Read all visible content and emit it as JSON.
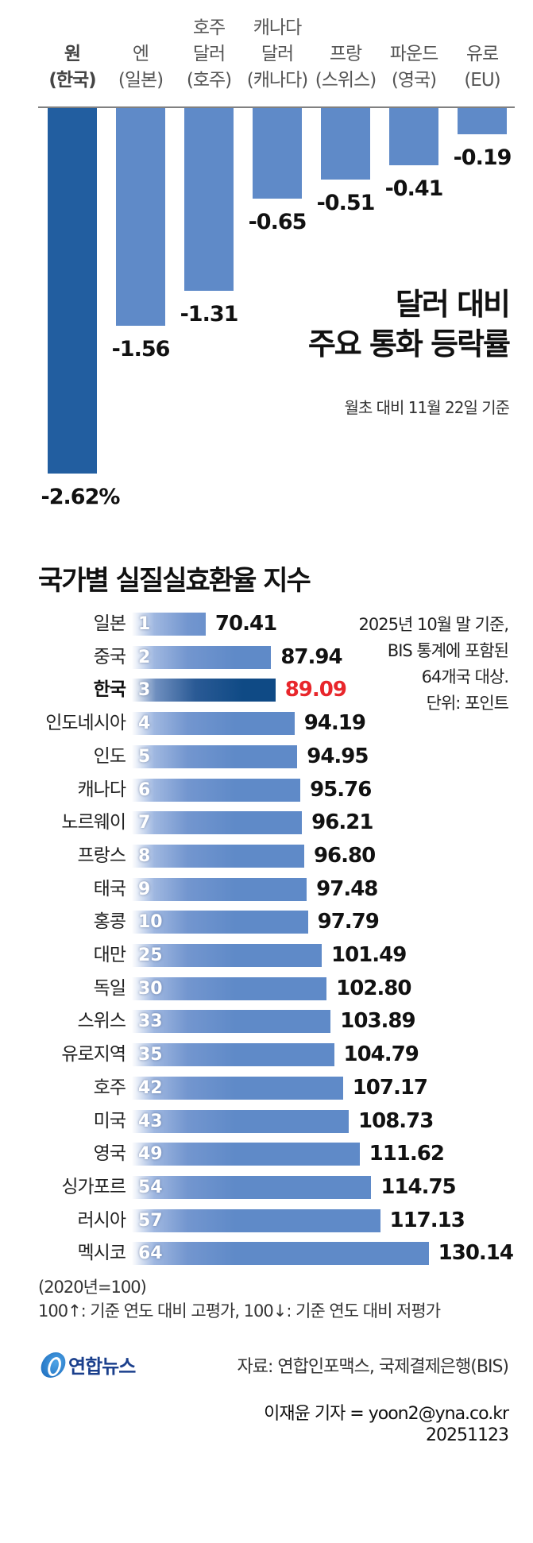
{
  "chart_data": [
    {
      "type": "bar",
      "title": "달러 대비 주요 통화 등락률",
      "subtitle": "월초 대비 11월 22일 기준",
      "unit": "%",
      "categories": [
        "원 (한국)",
        "엔 (일본)",
        "호주 달러 (호주)",
        "캐나다 달러 (캐나다)",
        "프랑 (스위스)",
        "파운드 (영국)",
        "유로 (EU)"
      ],
      "values": [
        -2.62,
        -1.56,
        -1.31,
        -0.65,
        -0.51,
        -0.41,
        -0.19
      ],
      "highlight_index": 0,
      "orientation": "vertical",
      "ylim": [
        -2.62,
        0
      ]
    },
    {
      "type": "bar",
      "orientation": "horizontal",
      "title": "국가별 실질실효환율 지수",
      "note": "2025년 10월 말 기준, BIS 통계에 포함된 64개국 대상. 단위: 포인트",
      "categories": [
        "일본",
        "중국",
        "한국",
        "인도네시아",
        "인도",
        "캐나다",
        "노르웨이",
        "프랑스",
        "태국",
        "홍콩",
        "대만",
        "독일",
        "스위스",
        "유로지역",
        "호주",
        "미국",
        "영국",
        "싱가포르",
        "러시아",
        "멕시코"
      ],
      "ranks": [
        1,
        2,
        3,
        4,
        5,
        6,
        7,
        8,
        9,
        10,
        25,
        30,
        33,
        35,
        42,
        43,
        49,
        54,
        57,
        64
      ],
      "values": [
        70.41,
        87.94,
        89.09,
        94.19,
        94.95,
        95.76,
        96.21,
        96.8,
        97.48,
        97.79,
        101.49,
        102.8,
        103.89,
        104.79,
        107.17,
        108.73,
        111.62,
        114.75,
        117.13,
        130.14
      ],
      "highlight_index": 2,
      "baseline": "2020년=100"
    }
  ],
  "chart1": {
    "labels": [
      {
        "lines": [
          "원",
          "(한국)"
        ],
        "bold": true
      },
      {
        "lines": [
          "엔",
          "(일본)"
        ]
      },
      {
        "lines": [
          "호주",
          "달러",
          "(호주)"
        ]
      },
      {
        "lines": [
          "캐나다",
          "달러",
          "(캐나다)"
        ]
      },
      {
        "lines": [
          "프랑",
          "(스위스)"
        ]
      },
      {
        "lines": [
          "파운드",
          "(영국)"
        ]
      },
      {
        "lines": [
          "유로",
          "(EU)"
        ]
      }
    ],
    "value_labels": [
      "-2.62%",
      "-1.56",
      "-1.31",
      "-0.65",
      "-0.51",
      "-0.41",
      "-0.19"
    ],
    "title_line1": "달러 대비",
    "title_line2": "주요 통화 등락률",
    "subtitle": "월초 대비 11월 22일 기준",
    "colors": {
      "highlight": "#225ea0",
      "default": "#5f8ac8",
      "axis": "#808080"
    }
  },
  "chart2": {
    "title": "국가별 실질실효환율 지수",
    "note_lines": [
      "2025년 10월 말 기준,",
      "BIS 통계에 포함된",
      "64개국 대상.",
      "단위: 포인트"
    ],
    "rows": [
      {
        "name": "일본",
        "rank": "1",
        "value": "70.41"
      },
      {
        "name": "중국",
        "rank": "2",
        "value": "87.94"
      },
      {
        "name": "한국",
        "rank": "3",
        "value": "89.09",
        "highlight": true
      },
      {
        "name": "인도네시아",
        "rank": "4",
        "value": "94.19"
      },
      {
        "name": "인도",
        "rank": "5",
        "value": "94.95"
      },
      {
        "name": "캐나다",
        "rank": "6",
        "value": "95.76"
      },
      {
        "name": "노르웨이",
        "rank": "7",
        "value": "96.21"
      },
      {
        "name": "프랑스",
        "rank": "8",
        "value": "96.80"
      },
      {
        "name": "태국",
        "rank": "9",
        "value": "97.48"
      },
      {
        "name": "홍콩",
        "rank": "10",
        "value": "97.79"
      },
      {
        "name": "대만",
        "rank": "25",
        "value": "101.49"
      },
      {
        "name": "독일",
        "rank": "30",
        "value": "102.80"
      },
      {
        "name": "스위스",
        "rank": "33",
        "value": "103.89"
      },
      {
        "name": "유로지역",
        "rank": "35",
        "value": "104.79"
      },
      {
        "name": "호주",
        "rank": "42",
        "value": "107.17"
      },
      {
        "name": "미국",
        "rank": "43",
        "value": "108.73"
      },
      {
        "name": "영국",
        "rank": "49",
        "value": "111.62"
      },
      {
        "name": "싱가포르",
        "rank": "54",
        "value": "114.75"
      },
      {
        "name": "러시아",
        "rank": "57",
        "value": "117.13"
      },
      {
        "name": "멕시코",
        "rank": "64",
        "value": "130.14"
      }
    ],
    "footnote_line1": "(2020년=100)",
    "footnote_line2": "100↑: 기준 연도 대비 고평가, 100↓: 기준 연도 대비 저평가",
    "colors": {
      "highlight_bar": "#0f4a85",
      "default_bar": "#5f8ac8",
      "highlight_value": "#e8262b"
    }
  },
  "footer": {
    "logo_text": "연합뉴스",
    "source": "자료: 연합인포맥스, 국제결제은행(BIS)",
    "byline": "이재윤 기자 = yoon2@yna.co.kr",
    "date": "20251123"
  }
}
